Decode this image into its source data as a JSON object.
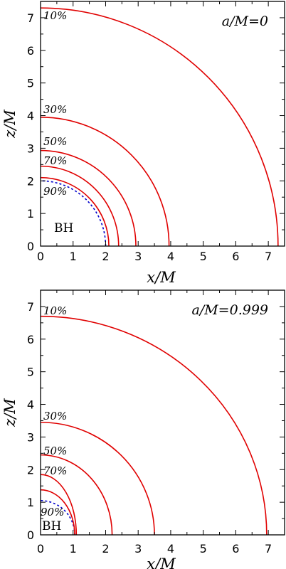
{
  "chart_data": [
    {
      "type": "line",
      "title": "a/M=0",
      "xlabel": "x/M",
      "ylabel": "z/M",
      "xlim": [
        0,
        7.5
      ],
      "ylim": [
        0,
        7.5
      ],
      "xticks": [
        "0",
        "1",
        "2",
        "3",
        "4",
        "5",
        "6",
        "7"
      ],
      "yticks": [
        "0",
        "1",
        "2",
        "3",
        "4",
        "5",
        "6",
        "7"
      ],
      "horizon": {
        "label": "BH",
        "x_radius": 2.0,
        "z_radius": 2.0,
        "color": "#0000cc",
        "style": "dashed"
      },
      "series": [
        {
          "name": "10%",
          "x_radius": 7.3,
          "z_radius": 7.3,
          "color": "#e00000"
        },
        {
          "name": "30%",
          "x_radius": 3.95,
          "z_radius": 3.95,
          "color": "#e00000"
        },
        {
          "name": "50%",
          "x_radius": 2.93,
          "z_radius": 2.93,
          "color": "#e00000"
        },
        {
          "name": "70%",
          "x_radius": 2.4,
          "z_radius": 2.45,
          "color": "#e00000"
        },
        {
          "name": "90%",
          "x_radius": 2.1,
          "z_radius": 2.1,
          "color": "#e00000"
        }
      ]
    },
    {
      "type": "line",
      "title": "a/M=0.999",
      "xlabel": "x/M",
      "ylabel": "z/M",
      "xlim": [
        0,
        7.5
      ],
      "ylim": [
        0,
        7.5
      ],
      "xticks": [
        "0",
        "1",
        "2",
        "3",
        "4",
        "5",
        "6",
        "7"
      ],
      "yticks": [
        "0",
        "1",
        "2",
        "3",
        "4",
        "5",
        "6",
        "7"
      ],
      "horizon": {
        "label": "BH",
        "x_radius": 1.05,
        "z_radius": 1.05,
        "color": "#0000cc",
        "style": "dashed"
      },
      "series": [
        {
          "name": "10%",
          "x_radius": 6.95,
          "z_radius": 6.7,
          "color": "#e00000"
        },
        {
          "name": "30%",
          "x_radius": 3.5,
          "z_radius": 3.45,
          "color": "#e00000"
        },
        {
          "name": "50%",
          "x_radius": 2.2,
          "z_radius": 2.45,
          "color": "#e00000"
        },
        {
          "name": "70%",
          "x_radius": 1.1,
          "z_radius": 1.85,
          "color": "#e00000"
        },
        {
          "name": "90%",
          "x_radius": 1.05,
          "z_radius": 1.38,
          "color": "#e00000"
        }
      ]
    }
  ]
}
